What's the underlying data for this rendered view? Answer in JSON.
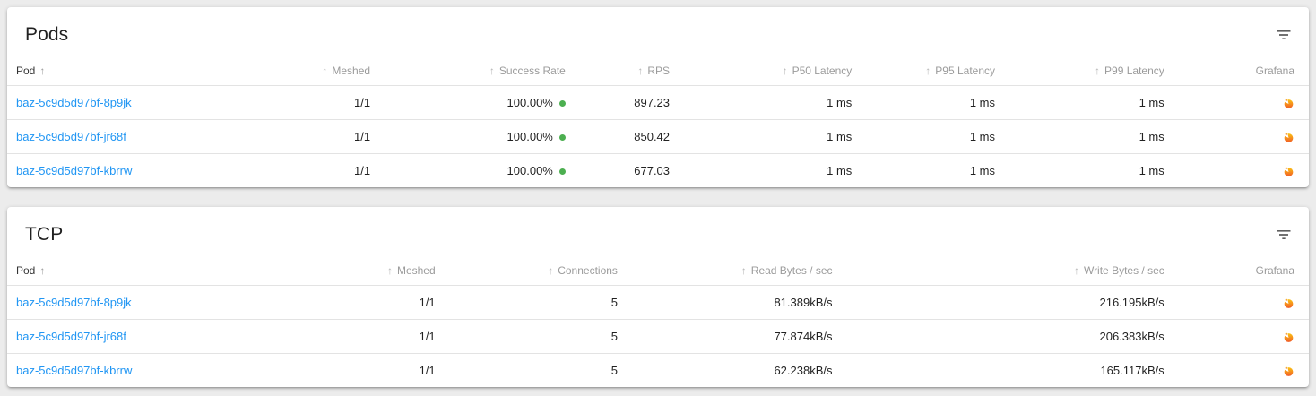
{
  "icons": {
    "sort": "↑",
    "filter": "filter-list-icon",
    "grafana": "grafana-icon",
    "success": "green-dot"
  },
  "colors": {
    "link": "#2196f3",
    "success_dot": "#4caf50",
    "grafana_orange": "#f05a28",
    "grafana_yellow": "#fbc412"
  },
  "pods": {
    "title": "Pods",
    "columns": [
      {
        "label": "Pod",
        "field": "pod",
        "align": "left",
        "sorted": true
      },
      {
        "label": "Meshed",
        "field": "meshed",
        "align": "right"
      },
      {
        "label": "Success Rate",
        "field": "success_rate",
        "align": "right"
      },
      {
        "label": "RPS",
        "field": "rps",
        "align": "right"
      },
      {
        "label": "P50 Latency",
        "field": "p50",
        "align": "right"
      },
      {
        "label": "P95 Latency",
        "field": "p95",
        "align": "right"
      },
      {
        "label": "P99 Latency",
        "field": "p99",
        "align": "right"
      },
      {
        "label": "Grafana",
        "field": "grafana",
        "align": "right",
        "icon": true
      }
    ],
    "rows": [
      {
        "pod": "baz-5c9d5d97bf-8p9jk",
        "meshed": "1/1",
        "success_rate": "100.00%",
        "rps": "897.23",
        "p50": "1 ms",
        "p95": "1 ms",
        "p99": "1 ms"
      },
      {
        "pod": "baz-5c9d5d97bf-jr68f",
        "meshed": "1/1",
        "success_rate": "100.00%",
        "rps": "850.42",
        "p50": "1 ms",
        "p95": "1 ms",
        "p99": "1 ms"
      },
      {
        "pod": "baz-5c9d5d97bf-kbrrw",
        "meshed": "1/1",
        "success_rate": "100.00%",
        "rps": "677.03",
        "p50": "1 ms",
        "p95": "1 ms",
        "p99": "1 ms"
      }
    ]
  },
  "tcp": {
    "title": "TCP",
    "columns": [
      {
        "label": "Pod",
        "field": "pod",
        "align": "left",
        "sorted": true
      },
      {
        "label": "Meshed",
        "field": "meshed",
        "align": "right"
      },
      {
        "label": "Connections",
        "field": "connections",
        "align": "right"
      },
      {
        "label": "Read Bytes / sec",
        "field": "read_bytes",
        "align": "right"
      },
      {
        "label": "Write Bytes / sec",
        "field": "write_bytes",
        "align": "right"
      },
      {
        "label": "Grafana",
        "field": "grafana",
        "align": "right",
        "icon": true
      }
    ],
    "rows": [
      {
        "pod": "baz-5c9d5d97bf-8p9jk",
        "meshed": "1/1",
        "connections": "5",
        "read_bytes": "81.389kB/s",
        "write_bytes": "216.195kB/s"
      },
      {
        "pod": "baz-5c9d5d97bf-jr68f",
        "meshed": "1/1",
        "connections": "5",
        "read_bytes": "77.874kB/s",
        "write_bytes": "206.383kB/s"
      },
      {
        "pod": "baz-5c9d5d97bf-kbrrw",
        "meshed": "1/1",
        "connections": "5",
        "read_bytes": "62.238kB/s",
        "write_bytes": "165.117kB/s"
      }
    ]
  }
}
